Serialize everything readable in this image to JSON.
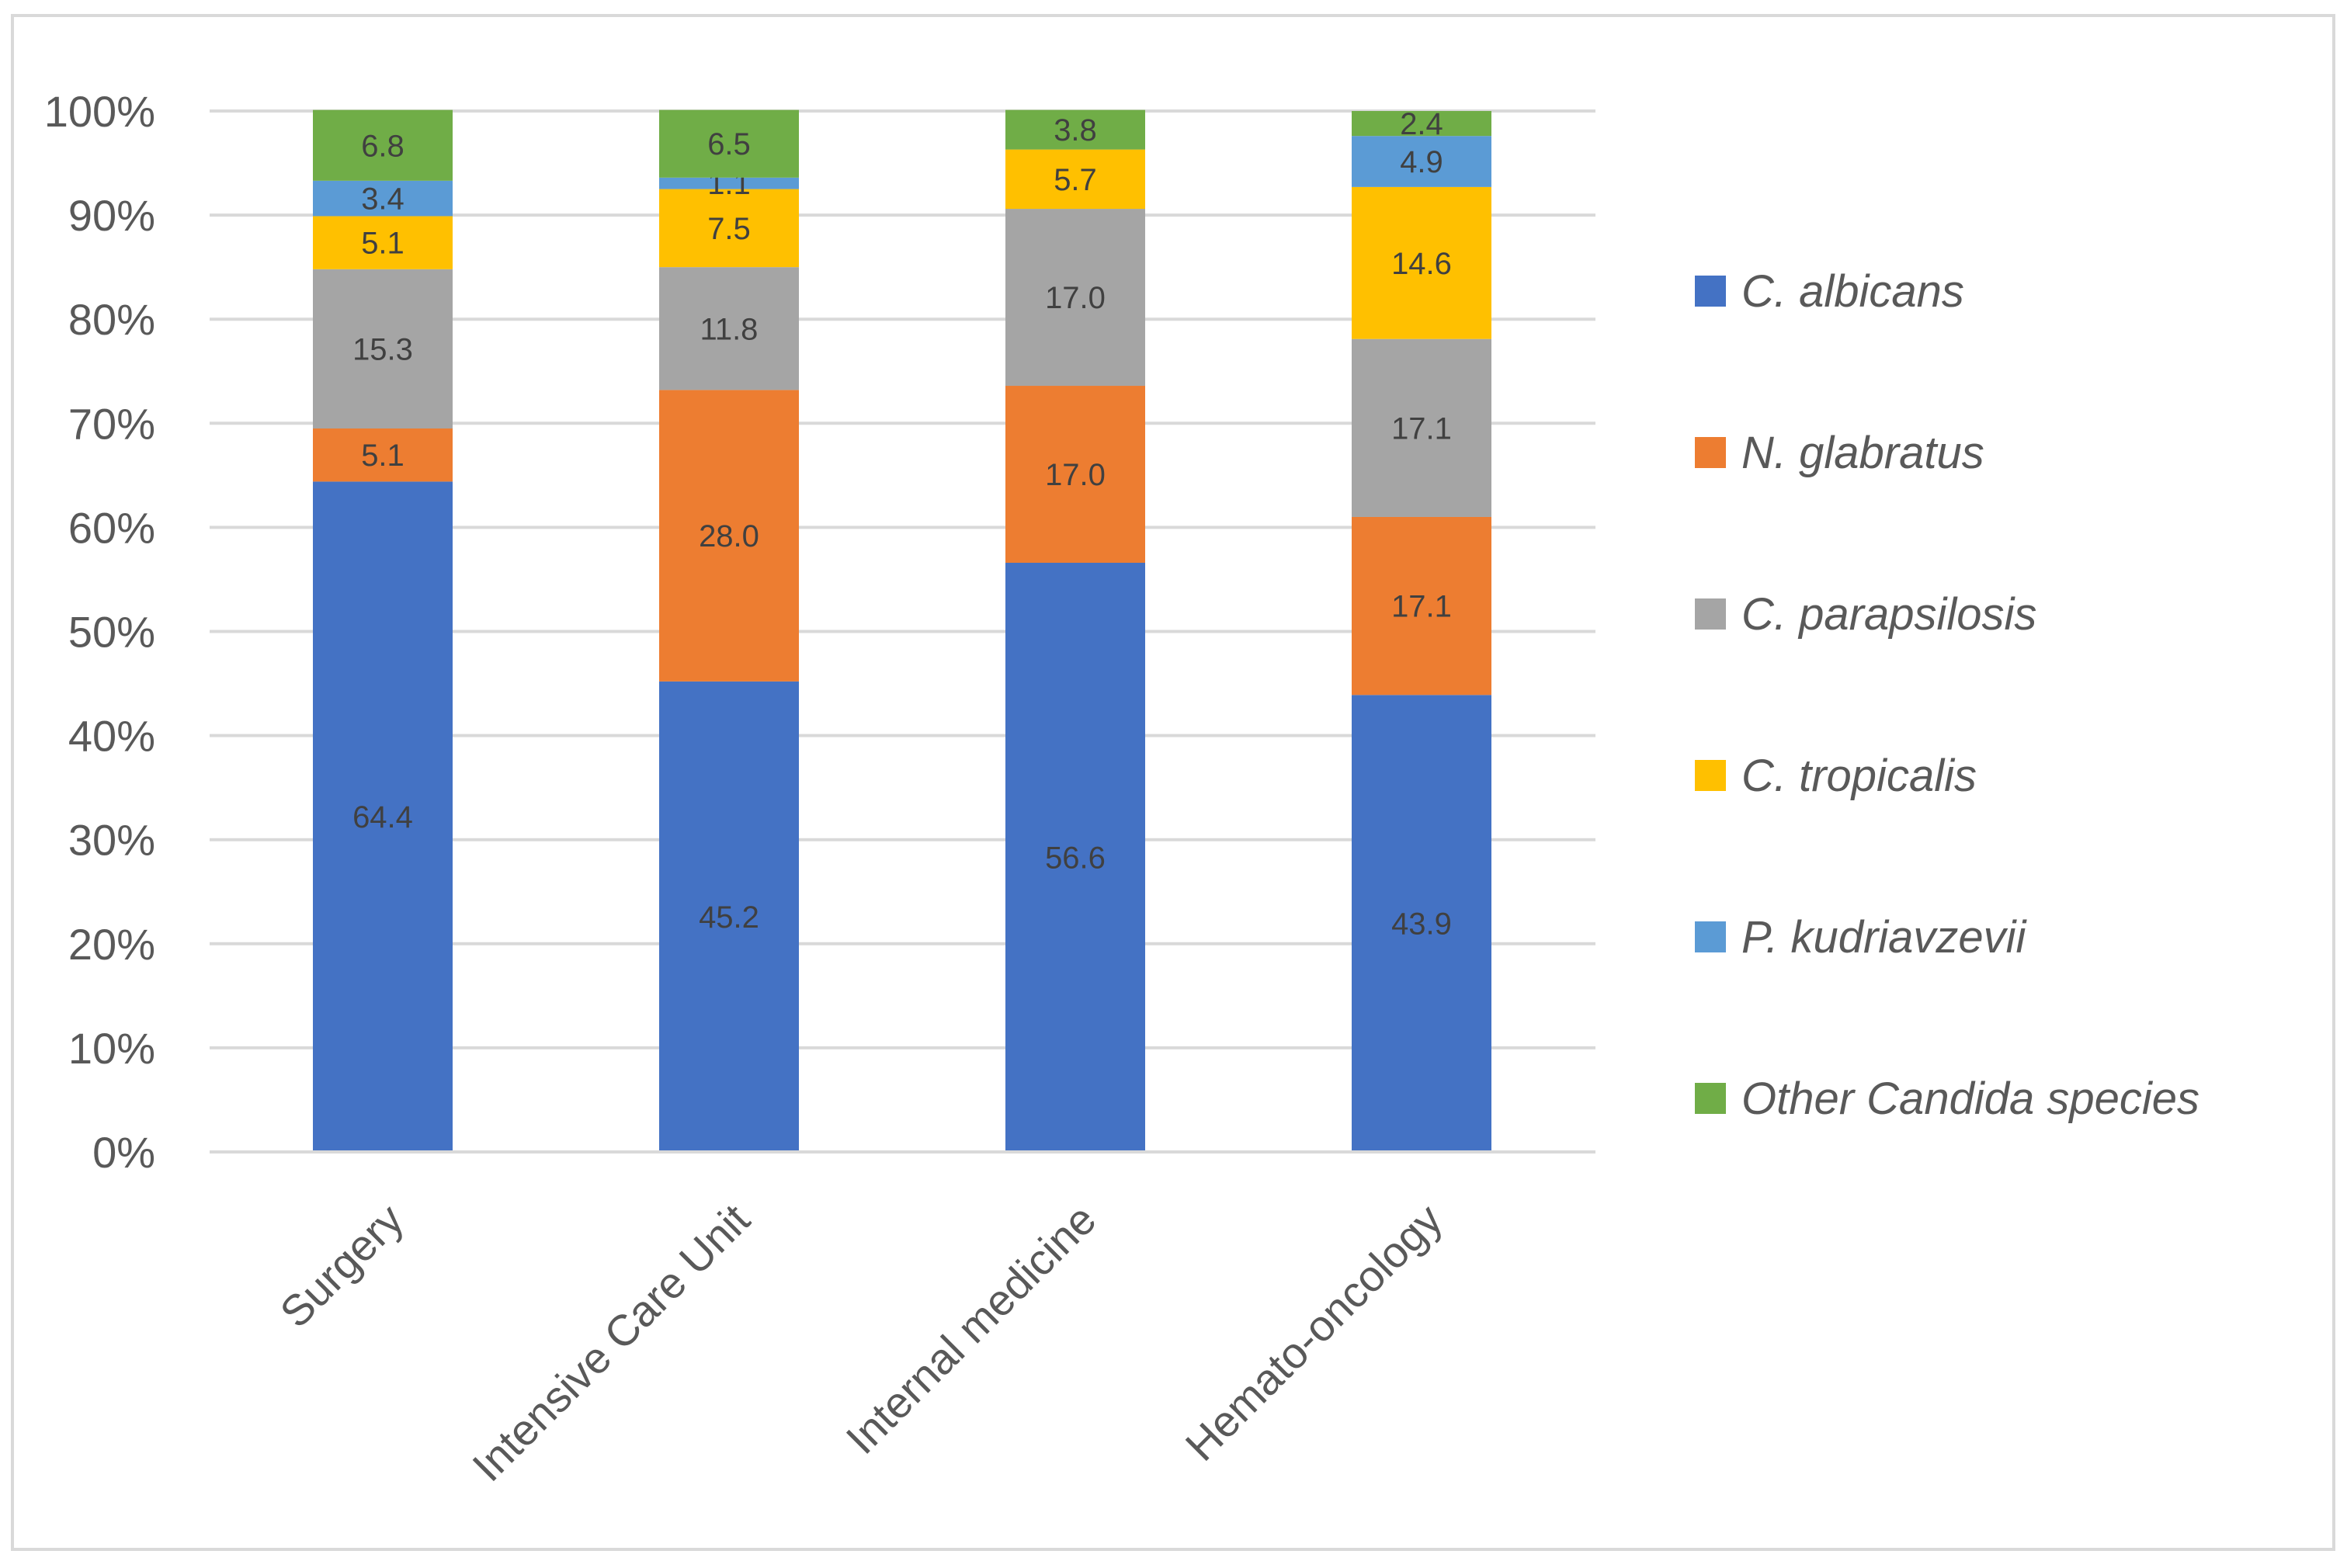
{
  "chart_data": {
    "type": "bar",
    "stacked": true,
    "percent": true,
    "title": "",
    "xlabel": "",
    "ylabel": "",
    "ylim": [
      0,
      100
    ],
    "yticks": [
      "0%",
      "10%",
      "20%",
      "30%",
      "40%",
      "50%",
      "60%",
      "70%",
      "80%",
      "90%",
      "100%"
    ],
    "categories": [
      "Surgery",
      "Intensive Care Unit",
      "Internal medicine",
      "Hemato-oncology"
    ],
    "series": [
      {
        "name": "C. albicans",
        "color": "#4472c4",
        "values": [
          64.4,
          45.2,
          56.6,
          43.9
        ],
        "labels": [
          "64.4",
          "45.2",
          "56.6",
          "43.9"
        ]
      },
      {
        "name": "N. glabratus",
        "color": "#ed7d31",
        "values": [
          5.1,
          28.0,
          17.0,
          17.1
        ],
        "labels": [
          "5.1",
          "28.0",
          "17.0",
          "17.1"
        ]
      },
      {
        "name": "C. parapsilosis",
        "color": "#a5a5a5",
        "values": [
          15.3,
          11.8,
          17.0,
          17.1
        ],
        "labels": [
          "15.3",
          "11.8",
          "17.0",
          "17.1"
        ]
      },
      {
        "name": "C. tropicalis",
        "color": "#ffc000",
        "values": [
          5.1,
          7.5,
          5.7,
          14.6
        ],
        "labels": [
          "5.1",
          "7.5",
          "5.7",
          "14.6"
        ]
      },
      {
        "name": "P. kudriavzevii",
        "color": "#5b9bd5",
        "values": [
          3.4,
          1.1,
          0,
          4.9
        ],
        "labels": [
          "3.4",
          "1.1",
          "",
          "4.9"
        ]
      },
      {
        "name": "Other Candida species",
        "color": "#70ad47",
        "values": [
          6.8,
          6.5,
          3.8,
          2.4
        ],
        "labels": [
          "6.8",
          "6.5",
          "3.8",
          "2.4"
        ]
      }
    ],
    "legend_position": "right",
    "grid": true
  }
}
